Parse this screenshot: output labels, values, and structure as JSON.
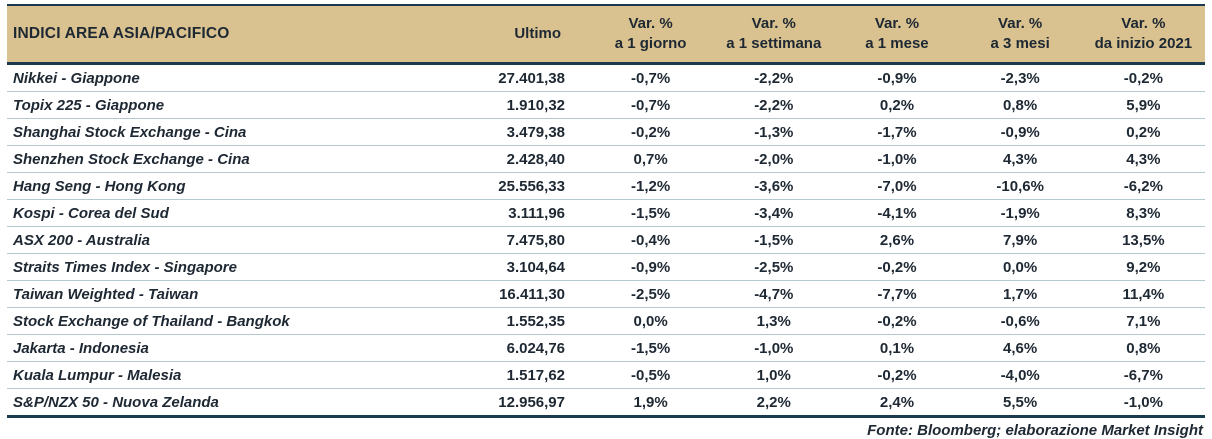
{
  "colors": {
    "header_background": "#d9c28f",
    "dark_border": "#1c3a4e",
    "row_line": "#b4c8d0",
    "text": "#1e2833"
  },
  "table": {
    "title_column": "INDICI AREA ASIA/PACIFICO",
    "columns": [
      {
        "line1": "Ultimo",
        "line2": ""
      },
      {
        "line1": "Var. %",
        "line2": "a 1 giorno"
      },
      {
        "line1": "Var. %",
        "line2": "a 1 settimana"
      },
      {
        "line1": "Var. %",
        "line2": "a 1 mese"
      },
      {
        "line1": "Var. %",
        "line2": "a 3 mesi"
      },
      {
        "line1": "Var. %",
        "line2": "da inizio 2021"
      }
    ],
    "rows": [
      {
        "name": "Nikkei - Giappone",
        "values": [
          "27.401,38",
          "-0,7%",
          "-2,2%",
          "-0,9%",
          "-2,3%",
          "-0,2%"
        ]
      },
      {
        "name": "Topix 225 - Giappone",
        "values": [
          "1.910,32",
          "-0,7%",
          "-2,2%",
          "0,2%",
          "0,8%",
          "5,9%"
        ]
      },
      {
        "name": "Shanghai Stock Exchange - Cina",
        "values": [
          "3.479,38",
          "-0,2%",
          "-1,3%",
          "-1,7%",
          "-0,9%",
          "0,2%"
        ]
      },
      {
        "name": "Shenzhen Stock Exchange - Cina",
        "values": [
          "2.428,40",
          "0,7%",
          "-2,0%",
          "-1,0%",
          "4,3%",
          "4,3%"
        ]
      },
      {
        "name": "Hang Seng - Hong Kong",
        "values": [
          "25.556,33",
          "-1,2%",
          "-3,6%",
          "-7,0%",
          "-10,6%",
          "-6,2%"
        ]
      },
      {
        "name": "Kospi - Corea del Sud",
        "values": [
          "3.111,96",
          "-1,5%",
          "-3,4%",
          "-4,1%",
          "-1,9%",
          "8,3%"
        ]
      },
      {
        "name": "ASX 200 - Australia",
        "values": [
          "7.475,80",
          "-0,4%",
          "-1,5%",
          "2,6%",
          "7,9%",
          "13,5%"
        ]
      },
      {
        "name": "Straits Times Index - Singapore",
        "values": [
          "3.104,64",
          "-0,9%",
          "-2,5%",
          "-0,2%",
          "0,0%",
          "9,2%"
        ]
      },
      {
        "name": "Taiwan Weighted - Taiwan",
        "values": [
          "16.411,30",
          "-2,5%",
          "-4,7%",
          "-7,7%",
          "1,7%",
          "11,4%"
        ]
      },
      {
        "name": "Stock Exchange of Thailand - Bangkok",
        "values": [
          "1.552,35",
          "0,0%",
          "1,3%",
          "-0,2%",
          "-0,6%",
          "7,1%"
        ]
      },
      {
        "name": "Jakarta - Indonesia",
        "values": [
          "6.024,76",
          "-1,5%",
          "-1,0%",
          "0,1%",
          "4,6%",
          "0,8%"
        ]
      },
      {
        "name": "Kuala Lumpur - Malesia",
        "values": [
          "1.517,62",
          "-0,5%",
          "1,0%",
          "-0,2%",
          "-4,0%",
          "-6,7%"
        ]
      },
      {
        "name": "S&P/NZX 50 - Nuova Zelanda",
        "values": [
          "12.956,97",
          "1,9%",
          "2,2%",
          "2,4%",
          "5,5%",
          "-1,0%"
        ]
      }
    ],
    "source": "Fonte: Bloomberg; elaborazione Market Insight"
  },
  "chart_data": {
    "type": "table",
    "title": "INDICI AREA ASIA/PACIFICO",
    "columns": [
      "Ultimo",
      "Var. % a 1 giorno",
      "Var. % a 1 settimana",
      "Var. % a 1 mese",
      "Var. % a 3 mesi",
      "Var. % da inizio 2021"
    ],
    "rows": [
      {
        "name": "Nikkei - Giappone",
        "ultimo": 27401.38,
        "var_1_giorno": -0.7,
        "var_1_settimana": -2.2,
        "var_1_mese": -0.9,
        "var_3_mesi": -2.3,
        "var_da_inizio_2021": -0.2
      },
      {
        "name": "Topix 225 - Giappone",
        "ultimo": 1910.32,
        "var_1_giorno": -0.7,
        "var_1_settimana": -2.2,
        "var_1_mese": 0.2,
        "var_3_mesi": 0.8,
        "var_da_inizio_2021": 5.9
      },
      {
        "name": "Shanghai Stock Exchange - Cina",
        "ultimo": 3479.38,
        "var_1_giorno": -0.2,
        "var_1_settimana": -1.3,
        "var_1_mese": -1.7,
        "var_3_mesi": -0.9,
        "var_da_inizio_2021": 0.2
      },
      {
        "name": "Shenzhen Stock Exchange - Cina",
        "ultimo": 2428.4,
        "var_1_giorno": 0.7,
        "var_1_settimana": -2.0,
        "var_1_mese": -1.0,
        "var_3_mesi": 4.3,
        "var_da_inizio_2021": 4.3
      },
      {
        "name": "Hang Seng - Hong Kong",
        "ultimo": 25556.33,
        "var_1_giorno": -1.2,
        "var_1_settimana": -3.6,
        "var_1_mese": -7.0,
        "var_3_mesi": -10.6,
        "var_da_inizio_2021": -6.2
      },
      {
        "name": "Kospi - Corea del Sud",
        "ultimo": 3111.96,
        "var_1_giorno": -1.5,
        "var_1_settimana": -3.4,
        "var_1_mese": -4.1,
        "var_3_mesi": -1.9,
        "var_da_inizio_2021": 8.3
      },
      {
        "name": "ASX 200 - Australia",
        "ultimo": 7475.8,
        "var_1_giorno": -0.4,
        "var_1_settimana": -1.5,
        "var_1_mese": 2.6,
        "var_3_mesi": 7.9,
        "var_da_inizio_2021": 13.5
      },
      {
        "name": "Straits Times Index - Singapore",
        "ultimo": 3104.64,
        "var_1_giorno": -0.9,
        "var_1_settimana": -2.5,
        "var_1_mese": -0.2,
        "var_3_mesi": 0.0,
        "var_da_inizio_2021": 9.2
      },
      {
        "name": "Taiwan Weighted - Taiwan",
        "ultimo": 16411.3,
        "var_1_giorno": -2.5,
        "var_1_settimana": -4.7,
        "var_1_mese": -7.7,
        "var_3_mesi": 1.7,
        "var_da_inizio_2021": 11.4
      },
      {
        "name": "Stock Exchange of Thailand - Bangkok",
        "ultimo": 1552.35,
        "var_1_giorno": 0.0,
        "var_1_settimana": 1.3,
        "var_1_mese": -0.2,
        "var_3_mesi": -0.6,
        "var_da_inizio_2021": 7.1
      },
      {
        "name": "Jakarta - Indonesia",
        "ultimo": 6024.76,
        "var_1_giorno": -1.5,
        "var_1_settimana": -1.0,
        "var_1_mese": 0.1,
        "var_3_mesi": 4.6,
        "var_da_inizio_2021": 0.8
      },
      {
        "name": "Kuala Lumpur - Malesia",
        "ultimo": 1517.62,
        "var_1_giorno": -0.5,
        "var_1_settimana": 1.0,
        "var_1_mese": -0.2,
        "var_3_mesi": -4.0,
        "var_da_inizio_2021": -6.7
      },
      {
        "name": "S&P/NZX 50 - Nuova Zelanda",
        "ultimo": 12956.97,
        "var_1_giorno": 1.9,
        "var_1_settimana": 2.2,
        "var_1_mese": 2.4,
        "var_3_mesi": 5.5,
        "var_da_inizio_2021": -1.0
      }
    ],
    "source": "Fonte: Bloomberg; elaborazione Market Insight"
  }
}
